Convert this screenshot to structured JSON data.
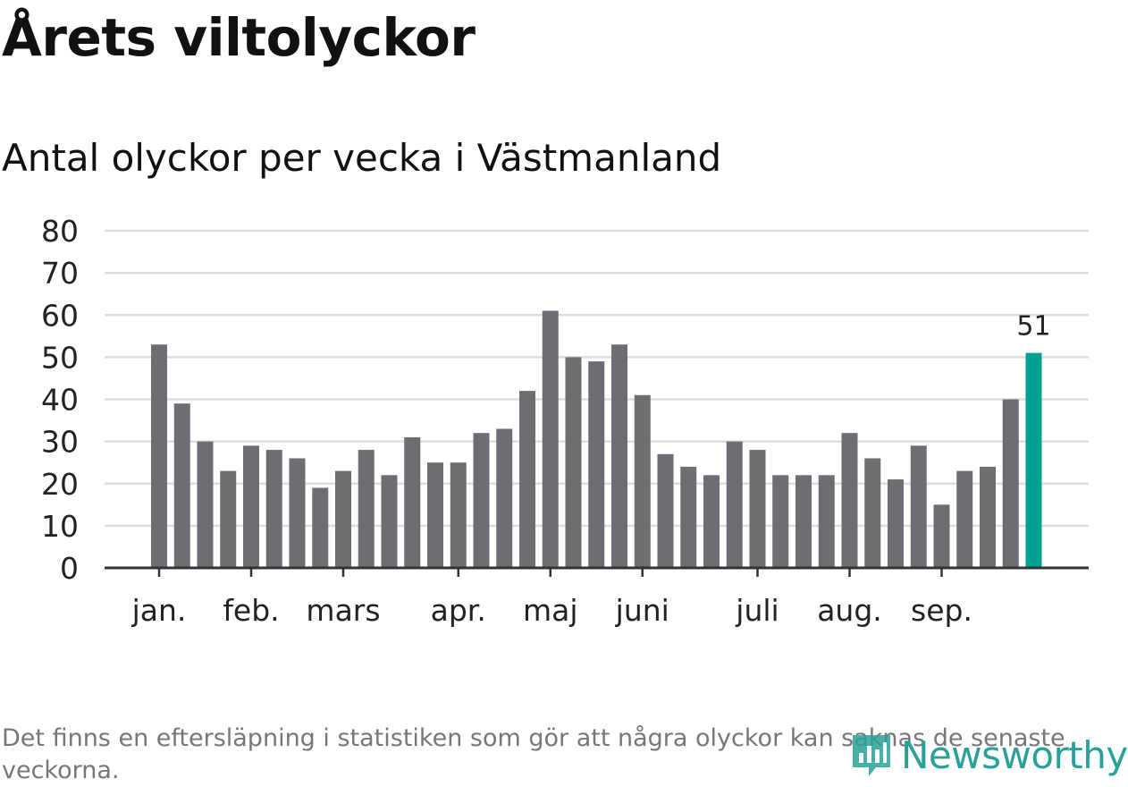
{
  "title": "Årets viltolyckor",
  "subtitle": "Antal olyckor per vecka i Västmanland",
  "note": "Det finns en eftersläpning i statistiken som gör att några olyckor kan saknas de senaste veckorna.",
  "logo": {
    "name": "Newsworthy",
    "icon": "newsworthy-logo-icon"
  },
  "colors": {
    "bar": "#6e6d73",
    "highlight": "#00a095",
    "grid": "#dddddd",
    "axis": "#333333"
  },
  "chart_data": {
    "type": "bar",
    "title": "Antal olyckor per vecka i Västmanland",
    "xlabel": "",
    "ylabel": "",
    "ylim": [
      0,
      80
    ],
    "yticks": [
      0,
      10,
      20,
      30,
      40,
      50,
      60,
      70,
      80
    ],
    "grid": true,
    "values": [
      53,
      39,
      30,
      23,
      29,
      28,
      26,
      19,
      23,
      28,
      22,
      31,
      25,
      25,
      32,
      33,
      42,
      61,
      50,
      49,
      53,
      41,
      27,
      24,
      22,
      30,
      28,
      22,
      22,
      22,
      32,
      26,
      21,
      29,
      15,
      23,
      24,
      40,
      51
    ],
    "highlight_index": 38,
    "highlight_label": "51",
    "month_ticks": [
      {
        "label": "jan.",
        "index": 0
      },
      {
        "label": "feb.",
        "index": 4
      },
      {
        "label": "mars",
        "index": 8
      },
      {
        "label": "apr.",
        "index": 13
      },
      {
        "label": "maj",
        "index": 17
      },
      {
        "label": "juni",
        "index": 21
      },
      {
        "label": "juli",
        "index": 26
      },
      {
        "label": "aug.",
        "index": 30
      },
      {
        "label": "sep.",
        "index": 34
      }
    ]
  }
}
